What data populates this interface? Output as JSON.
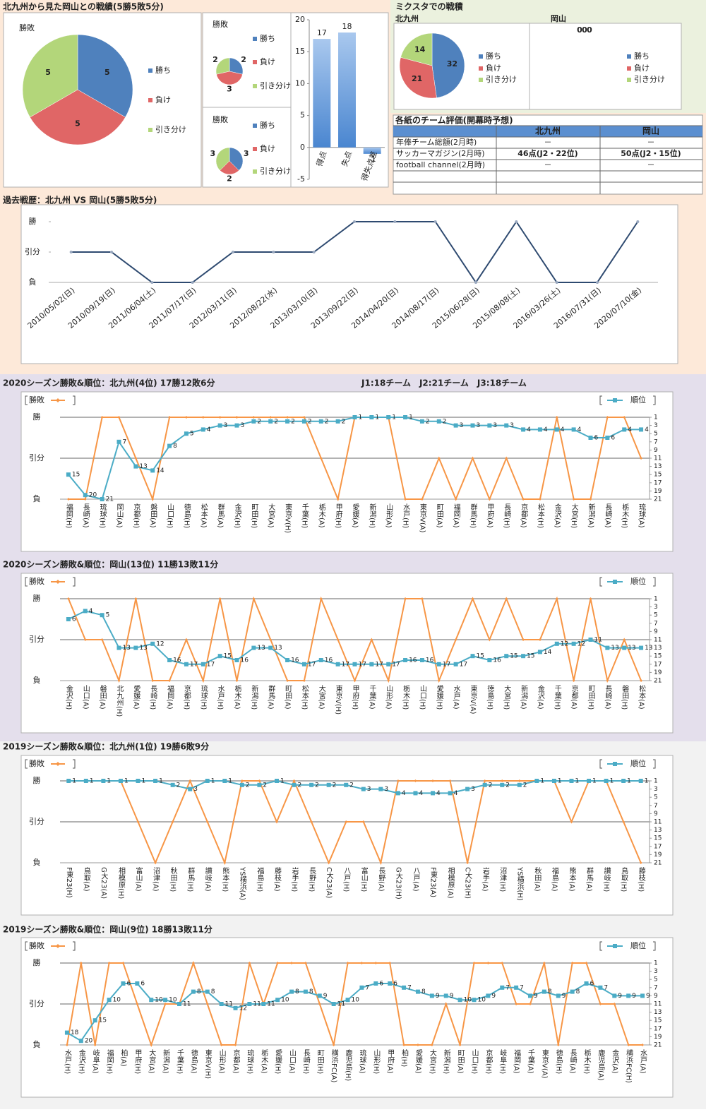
{
  "summary_title": "北九州から見た岡山との戦績(5勝5敗5分)",
  "mixta_title": "ミクスタでの戦積",
  "table": {
    "title": "各紙のチーム評価(開幕時予想)",
    "header": [
      "北九州",
      "岡山"
    ],
    "rows": [
      [
        "年俸チーム総額(2月時)",
        "－",
        "－"
      ],
      [
        "サッカーマガジン(2月時)",
        "46点(J2・22位)",
        "50点(J2・15位)"
      ],
      [
        "football channel(2月時)",
        "－",
        "－"
      ]
    ]
  },
  "chart_data": [
    {
      "type": "pie",
      "title": "勝敗",
      "categories": [
        "勝ち",
        "負け",
        "引き分け"
      ],
      "values": [
        5,
        5,
        5
      ],
      "colors": [
        "#4f81bd",
        "#e06666",
        "#b3d67a"
      ]
    },
    {
      "type": "pie",
      "title": "勝敗",
      "categories": [
        "勝ち",
        "負け",
        "引き分け"
      ],
      "values": [
        2,
        3,
        2
      ],
      "colors": [
        "#4f81bd",
        "#e06666",
        "#b3d67a"
      ]
    },
    {
      "type": "pie",
      "title": "勝敗",
      "categories": [
        "勝ち",
        "負け",
        "引き分け"
      ],
      "values": [
        3,
        2,
        3
      ],
      "colors": [
        "#4f81bd",
        "#e06666",
        "#b3d67a"
      ]
    },
    {
      "type": "bar",
      "categories": [
        "得点",
        "失点",
        "得失点差"
      ],
      "values": [
        17,
        18,
        -1
      ],
      "color": "#4a86d0",
      "ylim": [
        -5,
        20
      ],
      "yticks": [
        -5,
        0,
        5,
        10,
        15,
        20
      ]
    },
    {
      "type": "pie",
      "title": "北九州",
      "categories": [
        "勝ち",
        "負け",
        "引き分け"
      ],
      "values": [
        32,
        21,
        14
      ],
      "colors": [
        "#4f81bd",
        "#e06666",
        "#b3d67a"
      ]
    },
    {
      "type": "pie",
      "title": "岡山",
      "categories": [
        "勝ち",
        "負け",
        "引き分け"
      ],
      "values": [
        0,
        0,
        0
      ],
      "colors": [
        "#4f81bd",
        "#e06666",
        "#b3d67a"
      ]
    },
    {
      "type": "history",
      "title": "過去戦歴：北九州 VS 岡山(5勝5敗5分)",
      "categories": [
        "2010/05/02(日)",
        "2010/09/19(日)",
        "2011/06/04(土)",
        "2011/07/17(日)",
        "2012/03/11(日)",
        "2012/08/22(水)",
        "2013/03/10(日)",
        "2013/09/22(日)",
        "2014/04/20(日)",
        "2014/08/17(日)",
        "2015/06/28(日)",
        "2015/08/08(土)",
        "2016/03/26(土)",
        "2016/07/31(日)",
        "2020/07/10(金)"
      ],
      "values": [
        0,
        0,
        -1,
        -1,
        0,
        0,
        0,
        1,
        1,
        1,
        -1,
        1,
        -1,
        -1,
        1
      ],
      "color": "#2e4a70",
      "ylim": [
        -1,
        1
      ],
      "yticks": [
        {
          "value": 1,
          "label": "勝"
        },
        {
          "value": 0,
          "label": "引分"
        },
        {
          "value": -1,
          "label": "負"
        }
      ]
    },
    {
      "type": "season",
      "title": "2020シーズン勝敗&順位：北九州(4位) 17勝12敗6分",
      "annotation": "J1:18チーム　J2:21チーム　J3:18チーム",
      "categories": [
        "福岡(H)",
        "長崎(A)",
        "琉球(H)",
        "岡山(A)",
        "京都(H)",
        "磐田(A)",
        "山口(H)",
        "徳島(H)",
        "松本(A)",
        "群馬(A)",
        "金沢(H)",
        "町田(H)",
        "大宮(A)",
        "東京V(H)",
        "千葉(H)",
        "栃木(A)",
        "甲府(H)",
        "愛媛(A)",
        "新潟(H)",
        "山形(A)",
        "水戸(H)",
        "東京V(A)",
        "町田(A)",
        "福岡(A)",
        "群馬(H)",
        "甲府(A)",
        "長崎(H)",
        "京都(A)",
        "松本(H)",
        "金沢(A)",
        "大宮(H)",
        "新潟(A)",
        "長崎(A)",
        "栃木(H)",
        "琉球(A)"
      ],
      "series": [
        {
          "name": "勝敗",
          "color": "#f79646",
          "values": [
            -1,
            -1,
            1,
            1,
            0,
            -1,
            1,
            1,
            1,
            1,
            1,
            1,
            1,
            1,
            1,
            0,
            -1,
            1,
            1,
            1,
            -1,
            -1,
            0,
            -1,
            0,
            -1,
            0,
            -1,
            -1,
            1,
            -1,
            -1,
            1,
            1,
            0
          ]
        },
        {
          "name": "順位",
          "color": "#4bacc6",
          "axis": "y2",
          "values": [
            15,
            20,
            21,
            7,
            13,
            14,
            8,
            5,
            4,
            3,
            3,
            2,
            2,
            2,
            2,
            2,
            2,
            1,
            1,
            1,
            1,
            2,
            2,
            3,
            3,
            3,
            3,
            4,
            4,
            4,
            4,
            6,
            6,
            4,
            4
          ]
        }
      ],
      "ylim": [
        -1,
        1
      ],
      "yticks": [
        {
          "value": 1,
          "label": "勝"
        },
        {
          "value": 0,
          "label": "引分"
        },
        {
          "value": -1,
          "label": "負"
        }
      ],
      "y2lim": [
        21,
        1
      ],
      "y2ticks": [
        1,
        3,
        5,
        7,
        9,
        11,
        13,
        15,
        17,
        19,
        21
      ],
      "grid": true
    },
    {
      "type": "season",
      "title": "2020シーズン勝敗&順位：岡山(13位) 11勝13敗11分",
      "categories": [
        "金沢(H)",
        "山口(A)",
        "磐田(A)",
        "北九州(H)",
        "愛媛(A)",
        "長崎(H)",
        "福岡(A)",
        "京都(H)",
        "琉球(H)",
        "水戸(H)",
        "栃木(A)",
        "新潟(H)",
        "群馬(A)",
        "町田(A)",
        "松本(H)",
        "大宮(A)",
        "東京V(H)",
        "甲府(H)",
        "千葉(A)",
        "山形(A)",
        "栃木(H)",
        "山口(H)",
        "愛媛(H)",
        "水戸(A)",
        "東京V(A)",
        "徳島(H)",
        "大宮(H)",
        "新潟(A)",
        "金沢(A)",
        "千葉(H)",
        "京都(A)",
        "町田(H)",
        "長崎(A)",
        "磐田(H)",
        "松本(A)"
      ],
      "series": [
        {
          "name": "勝敗",
          "color": "#f79646",
          "values": [
            1,
            0,
            0,
            -1,
            1,
            -1,
            -1,
            0,
            -1,
            1,
            -1,
            1,
            0,
            -1,
            -1,
            1,
            0,
            -1,
            0,
            -1,
            1,
            1,
            -1,
            0,
            1,
            0,
            1,
            0,
            0,
            1,
            -1,
            1,
            -1,
            0,
            -1
          ]
        },
        {
          "name": "順位",
          "color": "#4bacc6",
          "axis": "y2",
          "values": [
            6,
            4,
            5,
            13,
            13,
            12,
            16,
            17,
            17,
            15,
            16,
            13,
            13,
            16,
            17,
            16,
            17,
            17,
            17,
            17,
            16,
            16,
            17,
            17,
            15,
            16,
            15,
            15,
            14,
            12,
            12,
            11,
            13,
            13,
            13
          ]
        }
      ],
      "ylim": [
        -1,
        1
      ],
      "yticks": [
        {
          "value": 1,
          "label": "勝"
        },
        {
          "value": 0,
          "label": "引分"
        },
        {
          "value": -1,
          "label": "負"
        }
      ],
      "y2lim": [
        21,
        1
      ],
      "y2ticks": [
        1,
        3,
        5,
        7,
        9,
        11,
        13,
        15,
        17,
        19,
        21
      ],
      "grid": true
    },
    {
      "type": "season",
      "title": "2019シーズン勝敗&順位：北九州(1位) 19勝6敗9分",
      "categories": [
        "F東23(H)",
        "鳥取(A)",
        "G大23(A)",
        "相模原(H)",
        "富山(A)",
        "沼津(A)",
        "秋田(H)",
        "群馬(H)",
        "讃岐(A)",
        "熊本(H)",
        "YS横浜(A)",
        "福島(H)",
        "藤枝(A)",
        "岩手(H)",
        "長野(H)",
        "C大23(A)",
        "八戸(H)",
        "富山(H)",
        "長野(A)",
        "G大23(H)",
        "八戸(A)",
        "F東23(A)",
        "相模原(A)",
        "C大23(H)",
        "岩手(A)",
        "沼津(H)",
        "YS横浜(H)",
        "秋田(A)",
        "福島(A)",
        "熊本(A)",
        "群馬(A)",
        "讃岐(H)",
        "鳥取(H)",
        "藤枝(H)"
      ],
      "series": [
        {
          "name": "勝敗",
          "color": "#f79646",
          "values": [
            1,
            1,
            1,
            1,
            0,
            -1,
            0,
            1,
            0,
            -1,
            1,
            1,
            0,
            1,
            0,
            -1,
            0,
            0,
            -1,
            1,
            1,
            1,
            1,
            -1,
            1,
            1,
            1,
            1,
            1,
            0,
            1,
            1,
            0,
            -1
          ]
        },
        {
          "name": "順位",
          "color": "#4bacc6",
          "axis": "y2",
          "values": [
            1,
            1,
            1,
            1,
            1,
            1,
            2,
            3,
            1,
            1,
            2,
            2,
            1,
            2,
            2,
            2,
            2,
            3,
            3,
            4,
            4,
            4,
            4,
            3,
            2,
            2,
            2,
            1,
            1,
            1,
            1,
            1,
            1,
            1
          ]
        }
      ],
      "ylim": [
        -1,
        1
      ],
      "yticks": [
        {
          "value": 1,
          "label": "勝"
        },
        {
          "value": 0,
          "label": "引分"
        },
        {
          "value": -1,
          "label": "負"
        }
      ],
      "y2lim": [
        21,
        1
      ],
      "y2ticks": [
        1,
        3,
        5,
        7,
        9,
        11,
        13,
        15,
        17,
        19,
        21
      ],
      "grid": true
    },
    {
      "type": "season",
      "title": "2019シーズン勝敗&順位：岡山(9位) 18勝13敗11分",
      "categories": [
        "水戸(H)",
        "金沢(H)",
        "岐阜(A)",
        "福岡(H)",
        "柏(A)",
        "甲府(H)",
        "大宮(A)",
        "新潟(A)",
        "千葉(H)",
        "徳島(A)",
        "東京V(H)",
        "山形(A)",
        "京都(A)",
        "琉球(H)",
        "栃木(A)",
        "愛媛(H)",
        "山口(A)",
        "長崎(H)",
        "町田(H)",
        "横浜FC(A)",
        "鹿児島(H)",
        "琉球(A)",
        "山形(H)",
        "甲府(A)",
        "柏(H)",
        "愛媛(A)",
        "大宮(H)",
        "新潟(H)",
        "町田(A)",
        "山口(H)",
        "京都(H)",
        "岐阜(H)",
        "福岡(A)",
        "千葉(A)",
        "東京V(A)",
        "徳島(H)",
        "長崎(A)",
        "栃木(H)",
        "鹿児島(A)",
        "金沢(A)",
        "横浜FC(H)",
        "水戸(A)"
      ],
      "series": [
        {
          "name": "勝敗",
          "color": "#f79646",
          "values": [
            -1,
            1,
            -1,
            1,
            1,
            0,
            -1,
            0,
            0,
            1,
            0,
            -1,
            -1,
            1,
            0,
            1,
            1,
            1,
            0,
            -1,
            1,
            1,
            1,
            1,
            -1,
            -1,
            -1,
            0,
            -1,
            1,
            1,
            1,
            0,
            0,
            1,
            -1,
            1,
            1,
            0,
            0,
            -1,
            -1
          ]
        },
        {
          "name": "順位",
          "color": "#4bacc6",
          "axis": "y2",
          "values": [
            18,
            20,
            15,
            10,
            6,
            6,
            10,
            10,
            11,
            8,
            8,
            11,
            12,
            11,
            11,
            10,
            8,
            8,
            9,
            11,
            10,
            7,
            6,
            6,
            7,
            8,
            9,
            9,
            10,
            10,
            9,
            7,
            7,
            9,
            8,
            9,
            8,
            6,
            7,
            9,
            9,
            9
          ]
        }
      ],
      "ylim": [
        -1,
        1
      ],
      "yticks": [
        {
          "value": 1,
          "label": "勝"
        },
        {
          "value": 0,
          "label": "引分"
        },
        {
          "value": -1,
          "label": "負"
        }
      ],
      "y2lim": [
        21,
        1
      ],
      "y2ticks": [
        1,
        3,
        5,
        7,
        9,
        11,
        13,
        15,
        17,
        19,
        21
      ],
      "grid": true
    }
  ]
}
